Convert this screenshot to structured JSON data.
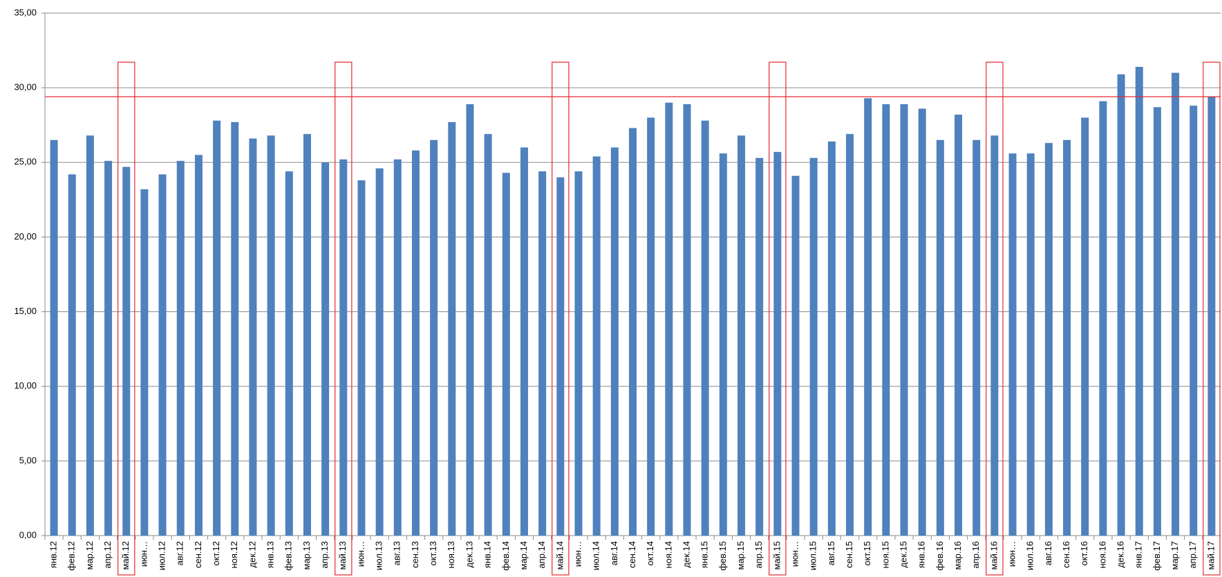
{
  "chart_data": {
    "type": "bar",
    "categories": [
      "янв.12",
      "фев.12",
      "мар.12",
      "апр.12",
      "май.12",
      "июн…",
      "июл.12",
      "авг.12",
      "сен.12",
      "окт.12",
      "ноя.12",
      "дек.12",
      "янв.13",
      "фев.13",
      "мар.13",
      "апр.13",
      "май.13",
      "июн…",
      "июл.13",
      "авг.13",
      "сен.13",
      "окт.13",
      "ноя.13",
      "дек.13",
      "янв.14",
      "фев.14",
      "мар.14",
      "апр.14",
      "май.14",
      "июн…",
      "июл.14",
      "авг.14",
      "сен.14",
      "окт.14",
      "ноя.14",
      "дек.14",
      "янв.15",
      "фев.15",
      "мар.15",
      "апр.15",
      "май.15",
      "июн…",
      "июл.15",
      "авг.15",
      "сен.15",
      "окт.15",
      "ноя.15",
      "дек.15",
      "янв.16",
      "фев.16",
      "мар.16",
      "апр.16",
      "май.16",
      "июн…",
      "июл.16",
      "авг.16",
      "сен.16",
      "окт.16",
      "ноя.16",
      "дек.16",
      "янв.17",
      "фев.17",
      "мар.17",
      "апр.17",
      "май.17"
    ],
    "values": [
      26.5,
      24.2,
      26.8,
      25.1,
      24.7,
      23.2,
      24.2,
      25.1,
      25.5,
      27.8,
      27.7,
      26.6,
      26.8,
      24.4,
      26.9,
      25.0,
      25.2,
      23.8,
      24.6,
      25.2,
      25.8,
      26.5,
      27.7,
      28.9,
      26.9,
      24.3,
      26.0,
      24.4,
      24.0,
      24.4,
      25.4,
      26.0,
      27.3,
      28.0,
      29.0,
      28.9,
      27.8,
      25.6,
      26.8,
      25.3,
      25.7,
      24.1,
      25.3,
      26.4,
      26.9,
      29.3,
      28.9,
      28.9,
      28.6,
      26.5,
      28.2,
      26.5,
      26.8,
      25.6,
      25.6,
      26.3,
      26.5,
      28.0,
      29.1,
      30.9,
      31.4,
      28.7,
      31.0,
      28.8,
      29.4
    ],
    "color": "#4f81bd",
    "ylim": [
      0,
      35
    ],
    "yticks": [
      {
        "value": 0,
        "label": "0,00"
      },
      {
        "value": 5,
        "label": "5,00"
      },
      {
        "value": 10,
        "label": "10,00"
      },
      {
        "value": 15,
        "label": "15,00"
      },
      {
        "value": 20,
        "label": "20,00"
      },
      {
        "value": 25,
        "label": "25,00"
      },
      {
        "value": 30,
        "label": "30,00"
      },
      {
        "value": 35,
        "label": "35,00"
      }
    ],
    "grid": true,
    "reference_line": 29.4,
    "reference_color": "#e8262d",
    "highlight_indices": [
      4,
      16,
      28,
      40,
      52,
      64
    ]
  }
}
